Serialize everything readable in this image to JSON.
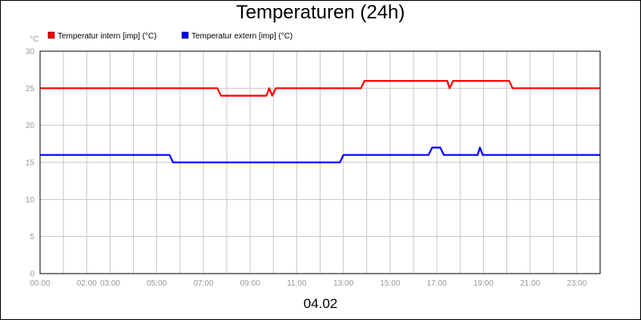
{
  "chart_data": {
    "type": "line",
    "title": "Temperaturen (24h)",
    "unit_label": "°C",
    "date_label": "04.02",
    "ylim": [
      0,
      30
    ],
    "y_ticks": [
      0,
      5,
      10,
      15,
      20,
      25,
      30
    ],
    "xlim": [
      0,
      24
    ],
    "x_tick_labels": [
      {
        "at": 0,
        "label": "00:00"
      },
      {
        "at": 2,
        "label": "02:00"
      },
      {
        "at": 3,
        "label": "03:00"
      },
      {
        "at": 5,
        "label": "05:00"
      },
      {
        "at": 7,
        "label": "07:00"
      },
      {
        "at": 9,
        "label": "09:00"
      },
      {
        "at": 11,
        "label": "11:00"
      },
      {
        "at": 13,
        "label": "13:00"
      },
      {
        "at": 15,
        "label": "15:00"
      },
      {
        "at": 17,
        "label": "17:00"
      },
      {
        "at": 19,
        "label": "19:00"
      },
      {
        "at": 21,
        "label": "21:00"
      },
      {
        "at": 23,
        "label": "23:00"
      }
    ],
    "grid": true,
    "legend_position": "top-left",
    "series": [
      {
        "name": "Temperatur intern [imp] (°C)",
        "color": "#ff0000",
        "points": [
          [
            0,
            25
          ],
          [
            7.6,
            25
          ],
          [
            7.75,
            24
          ],
          [
            9.7,
            24
          ],
          [
            9.82,
            25
          ],
          [
            9.95,
            24
          ],
          [
            10.1,
            25
          ],
          [
            13.75,
            25
          ],
          [
            13.9,
            26
          ],
          [
            17.45,
            26
          ],
          [
            17.55,
            25
          ],
          [
            17.7,
            26
          ],
          [
            20.1,
            26
          ],
          [
            20.25,
            25
          ],
          [
            24,
            25
          ]
        ]
      },
      {
        "name": "Temperatur extern [imp] (°C)",
        "color": "#0000ff",
        "points": [
          [
            0,
            16
          ],
          [
            5.55,
            16
          ],
          [
            5.7,
            15
          ],
          [
            12.85,
            15
          ],
          [
            13.0,
            16
          ],
          [
            16.65,
            16
          ],
          [
            16.8,
            17
          ],
          [
            17.15,
            17
          ],
          [
            17.3,
            16
          ],
          [
            18.75,
            16
          ],
          [
            18.85,
            17
          ],
          [
            18.97,
            16
          ],
          [
            24,
            16
          ]
        ]
      }
    ]
  }
}
